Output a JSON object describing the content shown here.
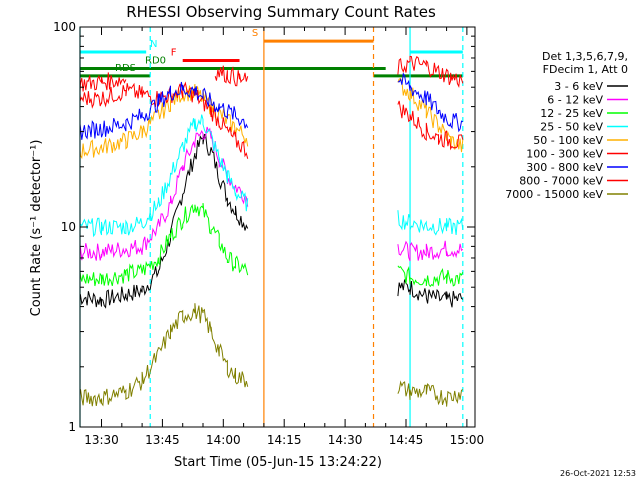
{
  "chart_data": {
    "type": "line",
    "title": "RHESSI Observing Summary Count Rates",
    "xlabel": "Start Time (05-Jun-15 13:24:22)",
    "ylabel": "Count Rate (s⁻¹ detector⁻¹)",
    "x_range_min": [
      24.4,
      102
    ],
    "y_range": [
      1,
      100
    ],
    "y_scale": "log",
    "x_ticks": [
      {
        "label": "13:30",
        "min": 30
      },
      {
        "label": "13:45",
        "min": 45
      },
      {
        "label": "14:00",
        "min": 60
      },
      {
        "label": "14:15",
        "min": 75
      },
      {
        "label": "14:30",
        "min": 90
      },
      {
        "label": "14:45",
        "min": 105
      },
      {
        "label": "15:00",
        "min": 120
      }
    ],
    "y_ticks": [
      {
        "label": "1",
        "value": 1
      },
      {
        "label": "10",
        "value": 10
      },
      {
        "label": "100",
        "value": 100
      }
    ],
    "legend_header": [
      "Det 1,3,5,6,7,9,",
      "FDecim 1, Att 0"
    ],
    "series": [
      {
        "name": "3 - 6 keV",
        "color": "#000000",
        "points": [
          [
            24.5,
            4.5
          ],
          [
            30,
            4.3
          ],
          [
            36,
            4.6
          ],
          [
            40,
            4.8
          ],
          [
            44,
            6
          ],
          [
            47,
            9
          ],
          [
            50,
            15
          ],
          [
            53,
            23
          ],
          [
            55,
            28
          ],
          [
            57,
            24
          ],
          [
            59,
            18
          ],
          [
            61,
            14
          ],
          [
            63,
            12
          ],
          [
            66,
            10
          ],
          [
            70,
            null
          ],
          [
            102,
            null
          ],
          [
            103,
            5
          ],
          [
            106,
            5
          ],
          [
            110,
            4.5
          ],
          [
            115,
            4.3
          ],
          [
            119,
            4.4
          ]
        ]
      },
      {
        "name": "6 - 12 keV",
        "color": "#ff00ff",
        "points": [
          [
            24.5,
            7.5
          ],
          [
            30,
            7.5
          ],
          [
            36,
            7.8
          ],
          [
            40,
            8
          ],
          [
            44,
            10
          ],
          [
            47,
            13
          ],
          [
            50,
            20
          ],
          [
            53,
            27
          ],
          [
            55,
            30
          ],
          [
            57,
            28
          ],
          [
            59,
            22
          ],
          [
            61,
            18
          ],
          [
            63,
            16
          ],
          [
            66,
            14
          ],
          [
            70,
            null
          ],
          [
            102,
            null
          ],
          [
            103,
            8
          ],
          [
            106,
            7.5
          ],
          [
            110,
            7.5
          ],
          [
            115,
            7.8
          ],
          [
            119,
            7.7
          ]
        ]
      },
      {
        "name": "12 - 25 keV",
        "color": "#00ff00",
        "points": [
          [
            24.5,
            5.5
          ],
          [
            30,
            5.5
          ],
          [
            36,
            5.8
          ],
          [
            40,
            6
          ],
          [
            44,
            7
          ],
          [
            47,
            9
          ],
          [
            50,
            11
          ],
          [
            53,
            13
          ],
          [
            55,
            12
          ],
          [
            57,
            10
          ],
          [
            59,
            8.5
          ],
          [
            61,
            7
          ],
          [
            63,
            6.5
          ],
          [
            66,
            6
          ],
          [
            70,
            null
          ],
          [
            102,
            null
          ],
          [
            103,
            6
          ],
          [
            106,
            5.6
          ],
          [
            110,
            5.5
          ],
          [
            115,
            5.6
          ],
          [
            119,
            5.5
          ]
        ]
      },
      {
        "name": "25 - 50 keV",
        "color": "#00ffff",
        "points": [
          [
            24.5,
            10
          ],
          [
            30,
            10
          ],
          [
            36,
            10
          ],
          [
            40,
            10.5
          ],
          [
            44,
            13
          ],
          [
            47,
            18
          ],
          [
            50,
            25
          ],
          [
            53,
            33
          ],
          [
            55,
            34
          ],
          [
            57,
            28
          ],
          [
            59,
            22
          ],
          [
            61,
            18
          ],
          [
            63,
            15
          ],
          [
            66,
            13
          ],
          [
            70,
            null
          ],
          [
            102,
            null
          ],
          [
            103,
            11
          ],
          [
            106,
            10.5
          ],
          [
            110,
            10.2
          ],
          [
            115,
            10
          ],
          [
            119,
            10
          ]
        ]
      },
      {
        "name": "50 - 100 keV",
        "color": "#ffb000",
        "points": [
          [
            24.5,
            24
          ],
          [
            30,
            25
          ],
          [
            36,
            27
          ],
          [
            40,
            30
          ],
          [
            44,
            36
          ],
          [
            47,
            42
          ],
          [
            50,
            47
          ],
          [
            53,
            47
          ],
          [
            55,
            44
          ],
          [
            57,
            40
          ],
          [
            59,
            37
          ],
          [
            61,
            34
          ],
          [
            63,
            31
          ],
          [
            66,
            28
          ],
          [
            70,
            null
          ],
          [
            102,
            null
          ],
          [
            103,
            52
          ],
          [
            106,
            47
          ],
          [
            110,
            38
          ],
          [
            113,
            32
          ],
          [
            116,
            27
          ],
          [
            119,
            25
          ]
        ]
      },
      {
        "name": "100 - 300 keV",
        "color": "#ff0000",
        "points": [
          [
            24.5,
            44
          ],
          [
            30,
            44
          ],
          [
            36,
            48
          ],
          [
            40,
            46
          ],
          [
            44,
            44
          ],
          [
            47,
            46
          ],
          [
            50,
            48
          ],
          [
            53,
            46
          ],
          [
            55,
            42
          ],
          [
            57,
            38
          ],
          [
            59,
            34
          ],
          [
            61,
            30
          ],
          [
            63,
            27
          ],
          [
            66,
            24
          ],
          [
            70,
            null
          ],
          [
            102,
            null
          ],
          [
            103,
            40
          ],
          [
            106,
            36
          ],
          [
            110,
            30
          ],
          [
            113,
            28
          ],
          [
            116,
            27
          ],
          [
            119,
            26
          ]
        ]
      },
      {
        "name": "300 - 800 keV",
        "color": "#0000ff",
        "points": [
          [
            24.5,
            30
          ],
          [
            30,
            31
          ],
          [
            36,
            33
          ],
          [
            40,
            36
          ],
          [
            44,
            42
          ],
          [
            47,
            47
          ],
          [
            50,
            49
          ],
          [
            53,
            48
          ],
          [
            55,
            45
          ],
          [
            57,
            42
          ],
          [
            59,
            40
          ],
          [
            61,
            38
          ],
          [
            63,
            36
          ],
          [
            66,
            33
          ],
          [
            70,
            null
          ],
          [
            102,
            null
          ],
          [
            103,
            55
          ],
          [
            106,
            50
          ],
          [
            110,
            44
          ],
          [
            113,
            38
          ],
          [
            116,
            34
          ],
          [
            119,
            33
          ]
        ]
      },
      {
        "name": "800 - 7000 keV",
        "color": "#ff0000",
        "points": [
          [
            24.5,
            52
          ],
          [
            30,
            53
          ],
          [
            36,
            55
          ],
          [
            40,
            null
          ],
          [
            57,
            null
          ],
          [
            58,
            60
          ],
          [
            61,
            58
          ],
          [
            64,
            55
          ],
          [
            66,
            53
          ],
          [
            70,
            null
          ],
          [
            102,
            null
          ],
          [
            103,
            62
          ],
          [
            106,
            66
          ],
          [
            110,
            64
          ],
          [
            113,
            60
          ],
          [
            116,
            56
          ],
          [
            119,
            54
          ]
        ]
      },
      {
        "name": "7000 - 15000 keV",
        "color": "#808000",
        "points": [
          [
            24.5,
            1.4
          ],
          [
            30,
            1.4
          ],
          [
            36,
            1.5
          ],
          [
            40,
            1.7
          ],
          [
            44,
            2.3
          ],
          [
            47,
            3
          ],
          [
            50,
            3.6
          ],
          [
            53,
            3.8
          ],
          [
            55,
            3.6
          ],
          [
            57,
            3
          ],
          [
            59,
            2.4
          ],
          [
            61,
            2
          ],
          [
            63,
            1.8
          ],
          [
            66,
            1.7
          ],
          [
            70,
            null
          ],
          [
            102,
            null
          ],
          [
            103,
            1.6
          ],
          [
            106,
            1.5
          ],
          [
            110,
            1.5
          ],
          [
            115,
            1.4
          ],
          [
            119,
            1.5
          ]
        ]
      }
    ],
    "flag_bars": [
      {
        "label": "N",
        "color": "#00ffff",
        "min_range": [
          24.5,
          41
        ],
        "value": 75
      },
      {
        "label": "F",
        "color": "#ff0000",
        "min_range": [
          50,
          64
        ],
        "value": 68
      },
      {
        "label": "S",
        "color": "#ff8000",
        "min_range": [
          70,
          97
        ],
        "value": 85
      },
      {
        "label": "RD0",
        "color": "#008000",
        "min_range": [
          24.5,
          100
        ],
        "value": 62
      },
      {
        "label": "RDS",
        "color": "#008000",
        "min_range": [
          24.5,
          42
        ],
        "value": 57
      },
      {
        "label": "",
        "color": "#00ffff",
        "min_range": [
          106,
          119
        ],
        "value": 75
      },
      {
        "label": "",
        "color": "#008000",
        "min_range": [
          97,
          119
        ],
        "value": 57
      }
    ],
    "vlines": [
      {
        "min": 24.7,
        "color": "#00ffff",
        "style": "solid"
      },
      {
        "min": 42,
        "color": "#00ffff",
        "style": "dashed"
      },
      {
        "min": 70,
        "color": "#ff8000",
        "style": "solid"
      },
      {
        "min": 97,
        "color": "#ff8000",
        "style": "dashed"
      },
      {
        "min": 106,
        "color": "#00ffff",
        "style": "solid"
      },
      {
        "min": 119,
        "color": "#00ffff",
        "style": "dashed"
      }
    ],
    "timestamp": "26-Oct-2021 12:53"
  }
}
